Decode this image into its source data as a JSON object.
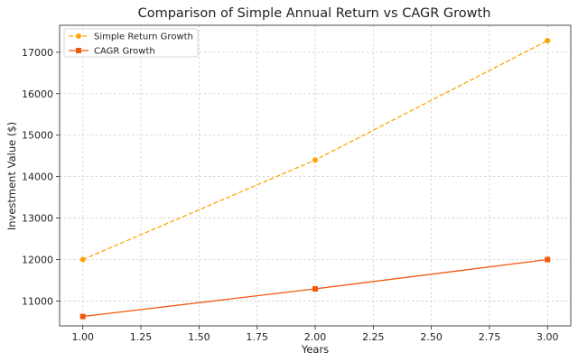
{
  "chart_data": {
    "type": "line",
    "title": "Comparison of Simple Annual Return vs CAGR Growth",
    "xlabel": "Years",
    "ylabel": "Investment Value ($)",
    "xlim": [
      0.9,
      3.1
    ],
    "ylim": [
      10400,
      17650
    ],
    "x": [
      1,
      2,
      3
    ],
    "x_ticks": [
      "1.00",
      "1.25",
      "1.50",
      "1.75",
      "2.00",
      "2.25",
      "2.50",
      "2.75",
      "3.00"
    ],
    "y_ticks": [
      "11000",
      "12000",
      "13000",
      "14000",
      "15000",
      "16000",
      "17000"
    ],
    "grid": true,
    "legend_position": "top-left",
    "series": [
      {
        "name": "Simple Return Growth",
        "values": [
          12000,
          14400,
          17280
        ],
        "color": "#FFA500",
        "line_style": "dashed",
        "marker": "circle"
      },
      {
        "name": "CAGR Growth",
        "values": [
          10627,
          11293,
          12000
        ],
        "color": "#F05A0F",
        "line_style": "solid",
        "marker": "square"
      }
    ]
  }
}
